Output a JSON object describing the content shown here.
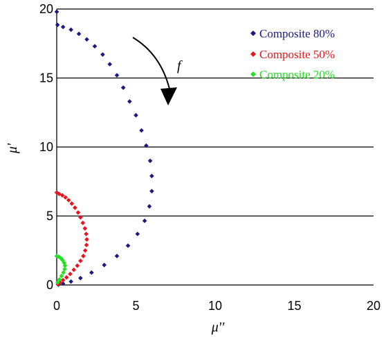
{
  "chart_data": {
    "type": "scatter",
    "xlabel": "μ''",
    "ylabel": "μ'",
    "xlim": [
      0,
      20
    ],
    "ylim": [
      0,
      20
    ],
    "xticks": [
      "0",
      "5",
      "10",
      "15",
      "20"
    ],
    "yticks": [
      "0",
      "5",
      "10",
      "15",
      "20"
    ],
    "grid": "horizontal",
    "legend_position": "top-right",
    "annotation": "f",
    "series": [
      {
        "name": "Composite 80%",
        "color": "#1a1a80",
        "marker": "diamond",
        "points": [
          [
            0.0,
            19.8
          ],
          [
            0.05,
            18.85
          ],
          [
            0.4,
            18.7
          ],
          [
            0.9,
            18.5
          ],
          [
            1.4,
            18.2
          ],
          [
            1.9,
            17.8
          ],
          [
            2.4,
            17.3
          ],
          [
            2.9,
            16.7
          ],
          [
            3.35,
            16.0
          ],
          [
            3.8,
            15.2
          ],
          [
            4.2,
            14.3
          ],
          [
            4.6,
            13.3
          ],
          [
            5.0,
            12.3
          ],
          [
            5.35,
            11.2
          ],
          [
            5.65,
            10.1
          ],
          [
            5.9,
            9.0
          ],
          [
            6.0,
            7.9
          ],
          [
            6.0,
            6.8
          ],
          [
            5.85,
            5.7
          ],
          [
            5.55,
            4.65
          ],
          [
            5.1,
            3.7
          ],
          [
            4.5,
            2.85
          ],
          [
            3.8,
            2.1
          ],
          [
            3.0,
            1.45
          ],
          [
            2.2,
            0.9
          ],
          [
            1.5,
            0.5
          ],
          [
            0.9,
            0.25
          ],
          [
            0.4,
            0.1
          ],
          [
            0.1,
            0.02
          ]
        ]
      },
      {
        "name": "Composite 50%",
        "color": "#e8141e",
        "marker": "diamond",
        "points": [
          [
            0.0,
            6.7
          ],
          [
            0.15,
            6.6
          ],
          [
            0.35,
            6.5
          ],
          [
            0.55,
            6.35
          ],
          [
            0.75,
            6.15
          ],
          [
            0.95,
            5.9
          ],
          [
            1.15,
            5.6
          ],
          [
            1.35,
            5.25
          ],
          [
            1.5,
            4.9
          ],
          [
            1.65,
            4.5
          ],
          [
            1.78,
            4.1
          ],
          [
            1.86,
            3.7
          ],
          [
            1.9,
            3.3
          ],
          [
            1.88,
            2.9
          ],
          [
            1.8,
            2.5
          ],
          [
            1.68,
            2.1
          ],
          [
            1.5,
            1.75
          ],
          [
            1.3,
            1.4
          ],
          [
            1.08,
            1.1
          ],
          [
            0.85,
            0.8
          ],
          [
            0.62,
            0.55
          ],
          [
            0.4,
            0.35
          ],
          [
            0.22,
            0.18
          ],
          [
            0.08,
            0.06
          ]
        ]
      },
      {
        "name": "Composite 20%",
        "color": "#22e022",
        "marker": "diamond",
        "points": [
          [
            0.0,
            2.1
          ],
          [
            0.12,
            2.05
          ],
          [
            0.25,
            1.95
          ],
          [
            0.37,
            1.8
          ],
          [
            0.47,
            1.6
          ],
          [
            0.52,
            1.4
          ],
          [
            0.5,
            1.15
          ],
          [
            0.42,
            0.9
          ],
          [
            0.3,
            0.65
          ],
          [
            0.17,
            0.4
          ],
          [
            0.06,
            0.18
          ]
        ]
      }
    ]
  }
}
